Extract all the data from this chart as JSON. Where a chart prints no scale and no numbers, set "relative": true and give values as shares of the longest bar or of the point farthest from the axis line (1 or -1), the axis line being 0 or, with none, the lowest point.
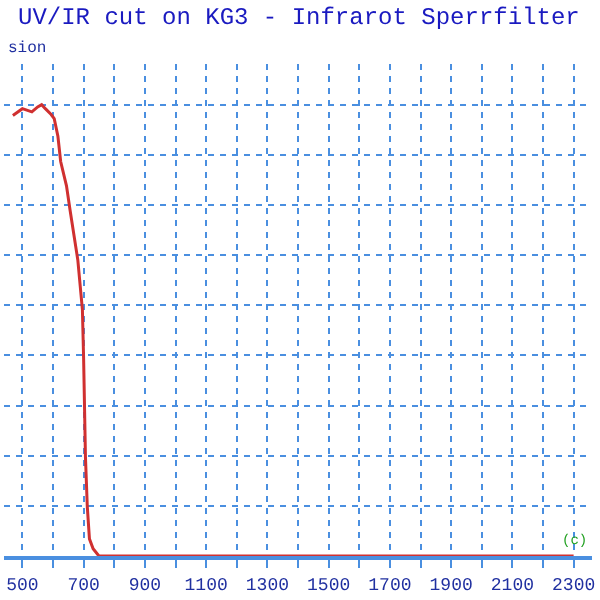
{
  "chart_data": {
    "type": "line",
    "title": "UV/IR cut on KG3 - Infrarot Sperrfilter",
    "subtitle": "sion",
    "annotations": [
      "(c)"
    ],
    "relative": true,
    "x": [
      469,
      500,
      531,
      550,
      563,
      575,
      594,
      604,
      616,
      625,
      644,
      656,
      681,
      696,
      700,
      703,
      706,
      712,
      719,
      731,
      750,
      1000,
      1500,
      2000,
      2300
    ],
    "series": [
      {
        "color": "#d03030",
        "values": [
          0.976,
          0.991,
          0.984,
          0.995,
          1,
          0.991,
          0.978,
          0.969,
          0.93,
          0.874,
          0.82,
          0.765,
          0.656,
          0.546,
          0.437,
          0.328,
          0.219,
          0.109,
          0.038,
          0.016,
          0,
          0,
          0,
          0,
          0
        ]
      }
    ],
    "xlim": [
      440,
      2360
    ],
    "xticks": [
      500,
      {
        "value": 600,
        "label": null
      },
      700,
      {
        "value": 800,
        "label": null
      },
      900,
      {
        "value": 1000,
        "label": null
      },
      1100,
      {
        "value": 1200,
        "label": null
      },
      1300,
      {
        "value": 1400,
        "label": null
      },
      1500,
      {
        "value": 1600,
        "label": null
      },
      1700,
      {
        "value": 1800,
        "label": null
      },
      1900,
      {
        "value": 2000,
        "label": null
      },
      2100,
      {
        "value": 2200,
        "label": null
      },
      2300
    ],
    "grid": true,
    "marker": "none",
    "line_style": "solid"
  }
}
